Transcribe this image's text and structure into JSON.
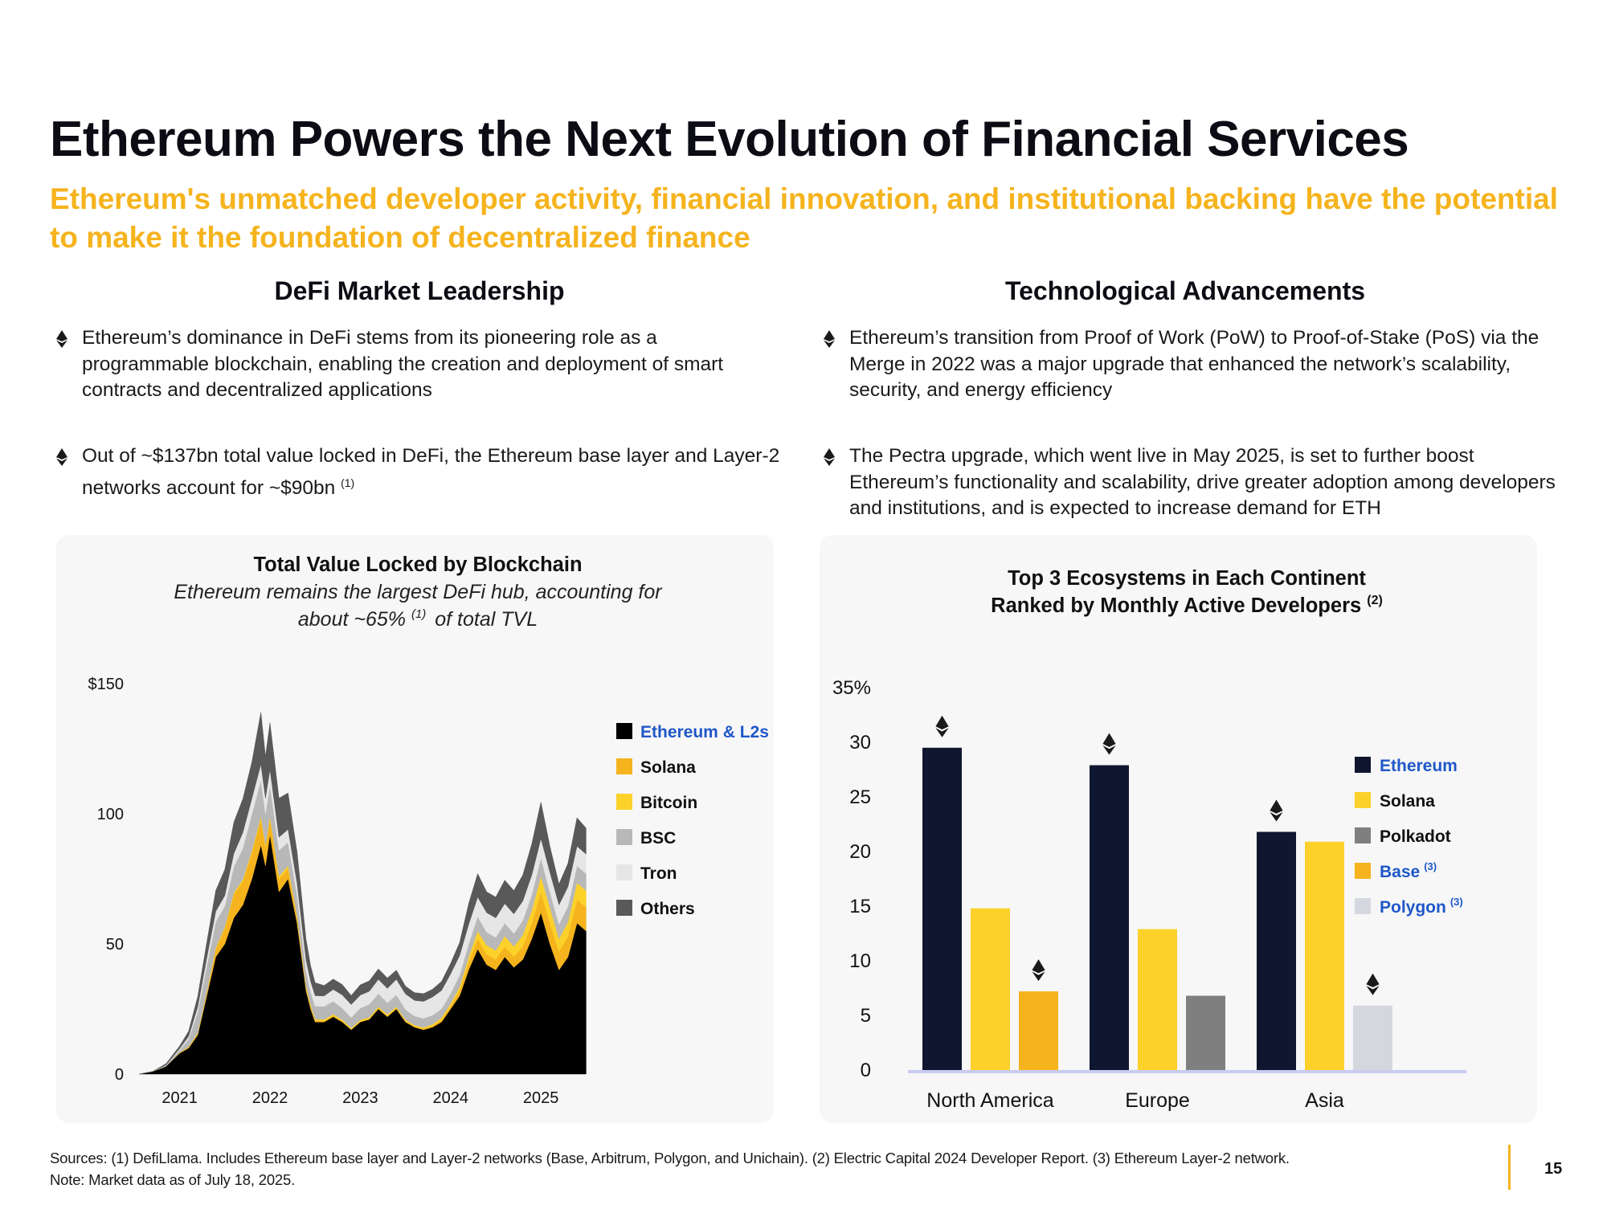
{
  "page": {
    "title": "Ethereum Powers the Next Evolution of Financial Services",
    "subtitle": "Ethereum's unmatched developer activity, financial innovation, and institutional backing have the potential to make it the foundation of decentralized finance",
    "page_number": "15",
    "colors": {
      "accent": "#f5b31d",
      "eth_navy": "#0f1630",
      "link_blue": "#1f57c8"
    }
  },
  "left": {
    "heading": "DeFi Market Leadership",
    "bullets": [
      {
        "text": "Ethereum’s dominance in DeFi stems from its pioneering role as a programmable blockchain, enabling the creation and deployment of smart contracts and decentralized applications"
      },
      {
        "text": "Out of ~$137bn total value locked in DeFi, the Ethereum base layer and Layer-2 networks account for ~$90bn",
        "sup": "(1)"
      }
    ]
  },
  "right": {
    "heading": "Technological Advancements",
    "bullets": [
      {
        "text": "Ethereum’s transition from Proof of Work (PoW) to Proof-of-Stake (PoS) via the Merge in 2022 was a major upgrade that enhanced the network’s scalability, security, and energy efficiency"
      },
      {
        "text": "The Pectra upgrade, which went live in May 2025, is set to further boost Ethereum’s functionality and scalability, drive greater adoption among developers and institutions, and is expected to increase demand for ETH"
      }
    ]
  },
  "chart_data": [
    {
      "type": "area",
      "title": "Total Value Locked by Blockchain",
      "subtitle_line1": "Ethereum remains the largest DeFi hub, accounting for",
      "subtitle_line2_a": "about ~65%",
      "subtitle_sup": "(1)",
      "subtitle_line2_b": "of total TVL",
      "ylim": [
        0,
        150
      ],
      "yticks": [
        {
          "value": 0,
          "label": "0"
        },
        {
          "value": 50,
          "label": "50"
        },
        {
          "value": 100,
          "label": "100"
        },
        {
          "value": 150,
          "label": "$150"
        }
      ],
      "xlim": [
        2020.55,
        2025.55
      ],
      "xticks": [
        {
          "value": 2021.0,
          "label": "2021"
        },
        {
          "value": 2022.0,
          "label": "2022"
        },
        {
          "value": 2023.0,
          "label": "2023"
        },
        {
          "value": 2024.0,
          "label": "2024"
        },
        {
          "value": 2025.0,
          "label": "2025"
        }
      ],
      "x": [
        2020.55,
        2020.7,
        2020.85,
        2021.0,
        2021.1,
        2021.2,
        2021.3,
        2021.4,
        2021.5,
        2021.6,
        2021.7,
        2021.8,
        2021.9,
        2021.95,
        2022.0,
        2022.1,
        2022.2,
        2022.3,
        2022.4,
        2022.45,
        2022.5,
        2022.6,
        2022.7,
        2022.8,
        2022.9,
        2023.0,
        2023.1,
        2023.2,
        2023.3,
        2023.4,
        2023.5,
        2023.6,
        2023.7,
        2023.8,
        2023.9,
        2024.0,
        2024.1,
        2024.2,
        2024.3,
        2024.4,
        2024.5,
        2024.6,
        2024.7,
        2024.8,
        2024.9,
        2025.0,
        2025.1,
        2025.2,
        2025.3,
        2025.4,
        2025.5
      ],
      "series": [
        {
          "name": "Ethereum & L2s",
          "color": "#000000",
          "values": [
            0,
            1,
            3,
            8,
            10,
            15,
            30,
            45,
            50,
            60,
            65,
            75,
            88,
            80,
            92,
            70,
            75,
            58,
            32,
            25,
            20,
            20,
            22,
            20,
            17,
            20,
            21,
            25,
            22,
            25,
            20,
            18,
            17,
            18,
            20,
            25,
            30,
            40,
            48,
            42,
            40,
            45,
            41,
            44,
            52,
            62,
            50,
            40,
            45,
            58,
            55
          ]
        },
        {
          "name": "Solana",
          "color": "#f5b31d",
          "values": [
            0,
            0,
            0,
            0.2,
            0.3,
            0.5,
            1,
            3,
            6,
            9,
            9,
            10,
            10,
            7,
            6,
            5,
            4,
            2,
            1,
            1,
            0.5,
            0.4,
            0.4,
            0.3,
            0.2,
            0.2,
            0.2,
            0.3,
            0.3,
            0.3,
            0.3,
            0.3,
            0.4,
            0.5,
            0.8,
            1,
            2,
            3,
            4,
            4,
            4,
            4,
            4,
            5,
            6,
            8,
            8,
            7,
            8,
            9,
            9
          ]
        },
        {
          "name": "Bitcoin",
          "color": "#fcd12a",
          "values": [
            0,
            0,
            0,
            0.1,
            0.2,
            0.3,
            0.5,
            0.5,
            0.6,
            0.7,
            0.8,
            0.9,
            1,
            1,
            1,
            1,
            1,
            0.9,
            0.8,
            0.6,
            0.6,
            0.6,
            0.6,
            0.6,
            0.5,
            0.6,
            0.6,
            0.6,
            0.6,
            0.6,
            0.5,
            0.5,
            0.5,
            0.6,
            0.8,
            1,
            1.5,
            2,
            3,
            3.5,
            3.5,
            4,
            4,
            4.5,
            5,
            6,
            6,
            5,
            5.5,
            6.5,
            6.5
          ]
        },
        {
          "name": "BSC",
          "color": "#b8b8b8",
          "values": [
            0,
            0,
            0.5,
            1,
            3,
            8,
            10,
            10,
            8,
            10,
            12,
            14,
            14,
            12,
            12,
            10,
            9,
            8,
            6,
            5,
            5,
            5,
            5,
            4.5,
            4,
            4.5,
            5,
            5,
            4.5,
            4.5,
            4,
            3.5,
            3.5,
            3.5,
            3.5,
            4,
            4.5,
            5,
            5.5,
            5,
            5,
            5,
            5,
            5.5,
            6,
            7,
            6,
            5.5,
            6,
            6.5,
            6.5
          ]
        },
        {
          "name": "Tron",
          "color": "#e6e6e6",
          "values": [
            0,
            0,
            0,
            0.5,
            1,
            2,
            3,
            4,
            4,
            5,
            6,
            6,
            6,
            6,
            6,
            5,
            5,
            4.5,
            4,
            4,
            4,
            4,
            4.5,
            5,
            5,
            5,
            5,
            5.5,
            5.5,
            6,
            6,
            6,
            6.5,
            7,
            7,
            7.5,
            7.5,
            7.5,
            7.5,
            7.5,
            7.5,
            7.5,
            7.5,
            7.5,
            7.5,
            7.5,
            7.5,
            7.5,
            7.5,
            7.5,
            7.5
          ]
        },
        {
          "name": "Others",
          "color": "#595959",
          "values": [
            0,
            0,
            0.5,
            1,
            2,
            4,
            6,
            8,
            10,
            12,
            13,
            14,
            20,
            16,
            18,
            15,
            14,
            12,
            8,
            6,
            5,
            4,
            4,
            4,
            3.5,
            4,
            4,
            4,
            4,
            3.5,
            3,
            3,
            3,
            3,
            3.5,
            4,
            5,
            8,
            9,
            8,
            8,
            9,
            9,
            10,
            12,
            14,
            10,
            8,
            9,
            11,
            10
          ]
        }
      ]
    },
    {
      "type": "bar",
      "title": "Top 3 Ecosystems in Each Continent",
      "title_line2": "Ranked by Monthly Active Developers",
      "title_sup": "(2)",
      "ylim": [
        0,
        35
      ],
      "yticks": [
        {
          "value": 0,
          "label": "0"
        },
        {
          "value": 5,
          "label": "5"
        },
        {
          "value": 10,
          "label": "10"
        },
        {
          "value": 15,
          "label": "15"
        },
        {
          "value": 20,
          "label": "20"
        },
        {
          "value": 25,
          "label": "25"
        },
        {
          "value": 30,
          "label": "30"
        },
        {
          "value": 35,
          "label": "35%"
        }
      ],
      "categories": [
        "North America",
        "Europe",
        "Asia"
      ],
      "groups": [
        {
          "category": "North America",
          "bars": [
            {
              "series": "Ethereum",
              "value": 29.5,
              "eth_marker": true
            },
            {
              "series": "Solana",
              "value": 14.8,
              "eth_marker": false
            },
            {
              "series": "Base",
              "value": 7.2,
              "eth_marker": true
            }
          ]
        },
        {
          "category": "Europe",
          "bars": [
            {
              "series": "Ethereum",
              "value": 27.9,
              "eth_marker": true
            },
            {
              "series": "Solana",
              "value": 12.9,
              "eth_marker": false
            },
            {
              "series": "Polkadot",
              "value": 6.8,
              "eth_marker": false
            }
          ]
        },
        {
          "category": "Asia",
          "bars": [
            {
              "series": "Ethereum",
              "value": 21.8,
              "eth_marker": true
            },
            {
              "series": "Solana",
              "value": 20.9,
              "eth_marker": false
            },
            {
              "series": "Polygon",
              "value": 5.9,
              "eth_marker": true
            }
          ]
        }
      ],
      "legend": [
        {
          "name": "Ethereum",
          "color": "#0f1630",
          "label_color": "#1f57c8",
          "sup": ""
        },
        {
          "name": "Solana",
          "color": "#fcd12a",
          "label_color": "#111111",
          "sup": ""
        },
        {
          "name": "Polkadot",
          "color": "#7f7f7f",
          "label_color": "#111111",
          "sup": ""
        },
        {
          "name": "Base",
          "color": "#f5b31d",
          "label_color": "#1f57c8",
          "sup": "(3)"
        },
        {
          "name": "Polygon",
          "color": "#d4d8de",
          "label_color": "#1f57c8",
          "sup": "(3)"
        }
      ]
    }
  ],
  "footer": {
    "sources": "Sources: (1) DefiLlama. Includes Ethereum base layer and Layer-2 networks (Base, Arbitrum, Polygon, and Unichain). (2) Electric Capital 2024 Developer Report. (3) Ethereum Layer-2 network.",
    "note": "Note: Market data as of July 18, 2025."
  }
}
